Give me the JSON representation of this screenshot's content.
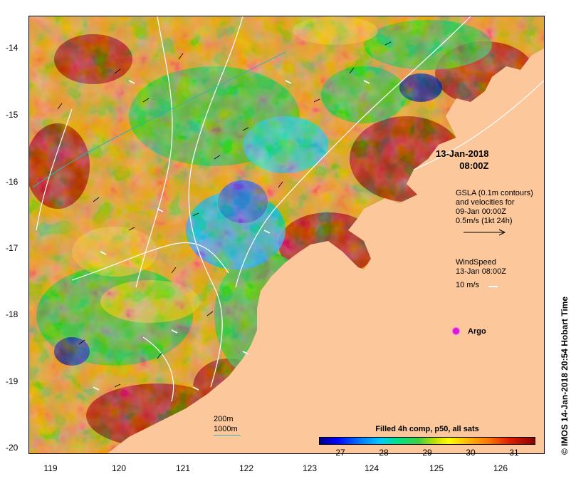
{
  "map": {
    "timestamp": "13-Jan-2018\n   08:00Z",
    "gsla_legend": "GSLA (0.1m contours)\nand velocities for\n09-Jan 00:00Z\n0.5m/s (1kt 24h)",
    "wind_legend": "WindSpeed\n13-Jan 08:00Z",
    "wind_scale": "10 m/s",
    "argo_label": "Argo",
    "scale_200": "200m",
    "scale_1000": "1000m",
    "credit": "© IMOS 14-Jan-2018 20:54 Hobart Time",
    "colors": {
      "land": "#fcc89b",
      "argo": "#d81ad8",
      "contour": "#ffffff",
      "bathymetry_1000": "#3ab0b0"
    }
  },
  "axes": {
    "y_ticks": [
      "-14",
      "-15",
      "-16",
      "-17",
      "-18",
      "-19",
      "-20"
    ],
    "x_ticks": [
      "119",
      "120",
      "121",
      "122",
      "123",
      "124",
      "125",
      "126"
    ]
  },
  "colorbar": {
    "title": "Filled 4h comp, p50, all sats",
    "ticks": [
      "27",
      "28",
      "29",
      "30",
      "31"
    ],
    "range": [
      26.5,
      31.5
    ]
  }
}
